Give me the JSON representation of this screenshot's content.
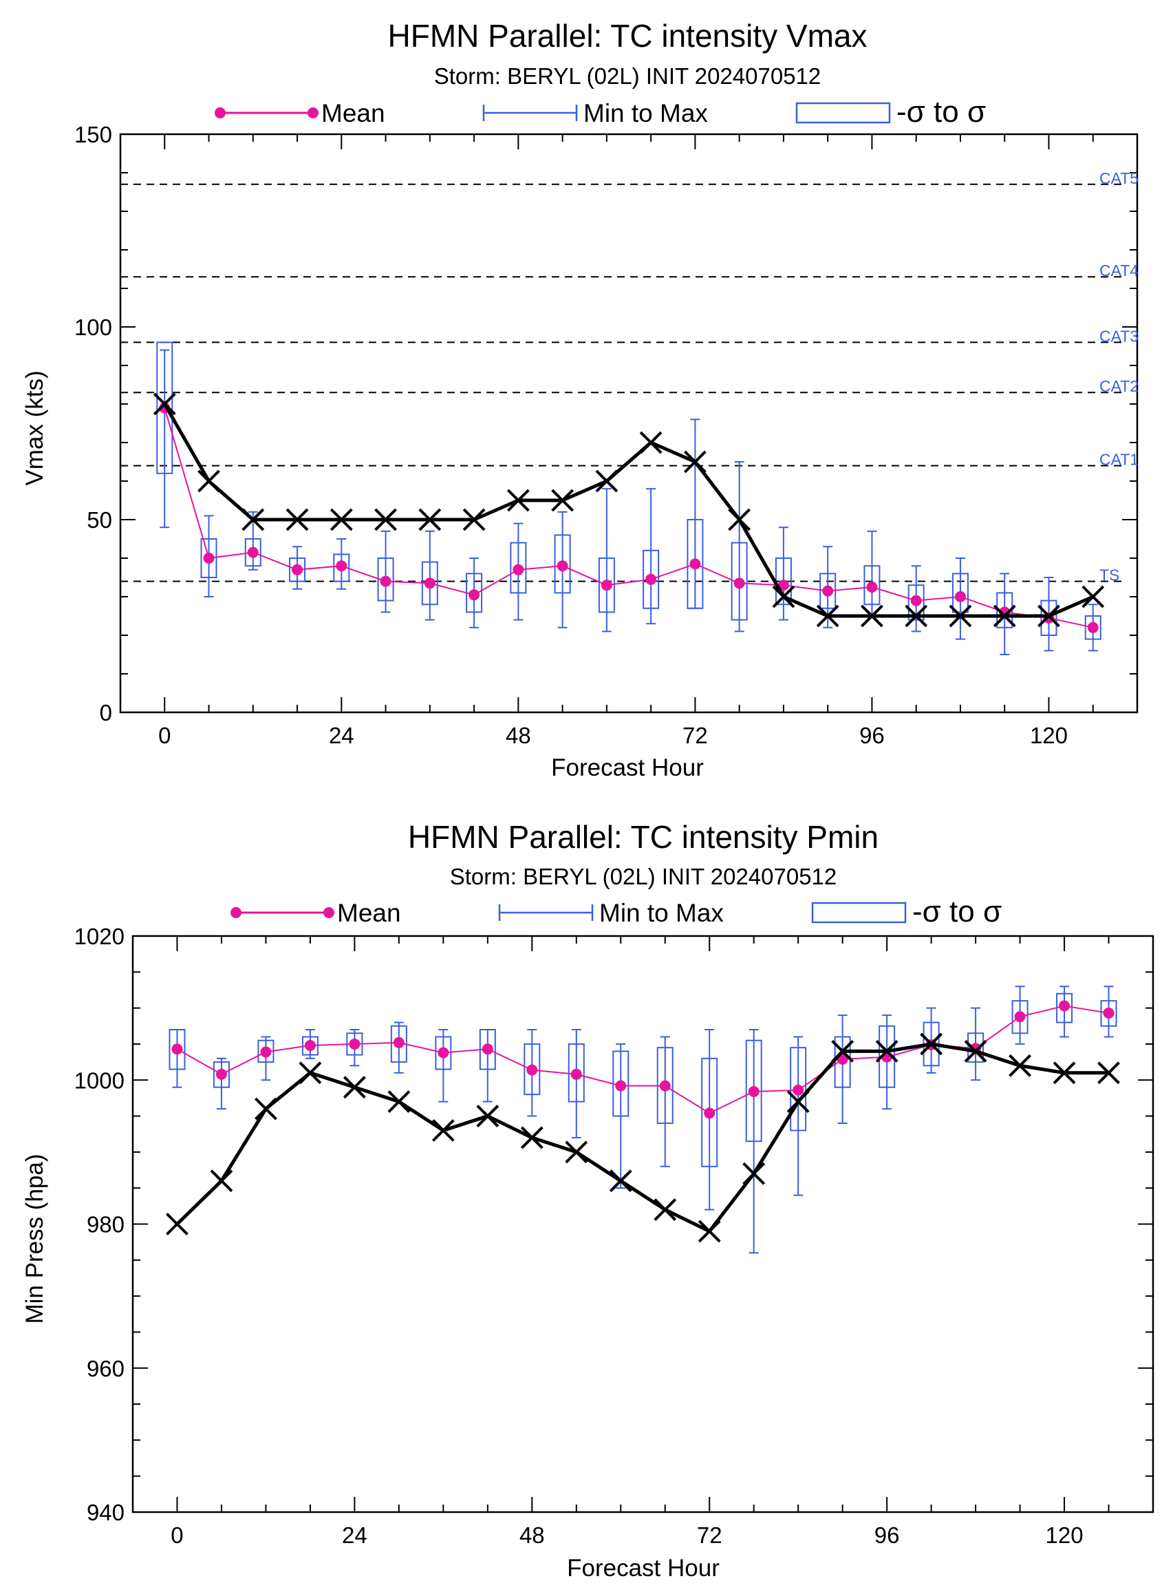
{
  "chart_data": [
    {
      "type": "line",
      "title": "HFMN Parallel: TC intensity Vmax",
      "subtitle": "Storm: BERYL (02L) INIT 2024070512",
      "xlabel": "Forecast Hour",
      "ylabel": "Vmax (kts)",
      "xlim": [
        -6,
        132
      ],
      "ylim": [
        0,
        150
      ],
      "xticks": [
        0,
        24,
        48,
        72,
        96,
        120
      ],
      "yticks": [
        0,
        50,
        100,
        150
      ],
      "legend": {
        "placement": "top",
        "mean": "Mean",
        "range": "Min to Max",
        "sigma": "-σ to σ"
      },
      "thresholds": [
        {
          "label": "TS",
          "value": 34
        },
        {
          "label": "CAT1",
          "value": 64
        },
        {
          "label": "CAT2",
          "value": 83
        },
        {
          "label": "CAT3",
          "value": 96
        },
        {
          "label": "CAT4",
          "value": 113
        },
        {
          "label": "CAT5",
          "value": 137
        }
      ],
      "colors": {
        "mean": "#e6149e",
        "ensemble": "#3a5fe0",
        "observed": "#000000"
      },
      "observed": {
        "x": [
          0,
          6,
          12,
          18,
          24,
          30,
          36,
          42,
          48,
          54,
          60,
          66,
          72,
          78,
          84,
          90,
          96,
          102,
          108,
          114,
          120,
          126
        ],
        "y": [
          80,
          60,
          50,
          50,
          50,
          50,
          50,
          50,
          55,
          55,
          60,
          70,
          65,
          50,
          30,
          25,
          25,
          25,
          25,
          25,
          25,
          30
        ]
      },
      "ensemble": {
        "x": [
          0,
          6,
          12,
          18,
          24,
          30,
          36,
          42,
          48,
          54,
          60,
          66,
          72,
          78,
          84,
          90,
          96,
          102,
          108,
          114,
          120,
          126
        ],
        "mean": [
          79,
          40,
          41.5,
          37,
          38,
          34,
          33.5,
          30.5,
          37,
          38,
          33,
          34.5,
          38.5,
          33.5,
          33,
          31.5,
          32.5,
          29,
          30,
          26,
          24.5,
          22
        ],
        "min": [
          48,
          30,
          37,
          32,
          32,
          26,
          24,
          22,
          24,
          22,
          21,
          23,
          27,
          21,
          24,
          22,
          25,
          21,
          19,
          15,
          16,
          16
        ],
        "max": [
          94,
          51,
          52,
          43,
          45,
          47,
          47,
          40,
          49,
          52,
          58,
          58,
          76,
          65,
          48,
          43,
          47,
          38,
          40,
          36,
          35,
          28
        ],
        "sigma_low": [
          62,
          35,
          38,
          34,
          34,
          29,
          28,
          26,
          31,
          31,
          26,
          27,
          27,
          24,
          28,
          27,
          28,
          24,
          26,
          22,
          20,
          19
        ],
        "sigma_high": [
          96,
          45,
          45,
          40,
          41,
          40,
          39,
          36,
          44,
          46,
          40,
          42,
          50,
          44,
          40,
          36,
          38,
          33,
          36,
          31,
          29,
          25
        ]
      }
    },
    {
      "type": "line",
      "title": "HFMN Parallel: TC intensity Pmin",
      "subtitle": "Storm: BERYL (02L) INIT 2024070512",
      "xlabel": "Forecast Hour",
      "ylabel": "Min Press (hpa)",
      "xlim": [
        -6,
        132
      ],
      "ylim": [
        940,
        1020
      ],
      "xticks": [
        0,
        24,
        48,
        72,
        96,
        120
      ],
      "yticks": [
        940,
        960,
        980,
        1000,
        1020
      ],
      "legend": {
        "placement": "top",
        "mean": "Mean",
        "range": "Min to Max",
        "sigma": "-σ to σ"
      },
      "colors": {
        "mean": "#e6149e",
        "ensemble": "#3a5fe0",
        "observed": "#000000"
      },
      "observed": {
        "x": [
          0,
          6,
          12,
          18,
          24,
          30,
          36,
          42,
          48,
          54,
          60,
          66,
          72,
          78,
          84,
          90,
          96,
          102,
          108,
          114,
          120,
          126
        ],
        "y": [
          980,
          986,
          996,
          1001,
          999,
          997,
          993,
          995,
          992,
          990,
          986,
          982,
          979,
          987,
          997,
          1004,
          1004,
          1005,
          1004,
          1002,
          1001,
          1001
        ]
      },
      "ensemble": {
        "x": [
          0,
          6,
          12,
          18,
          24,
          30,
          36,
          42,
          48,
          54,
          60,
          66,
          72,
          78,
          84,
          90,
          96,
          102,
          108,
          114,
          120,
          126
        ],
        "mean": [
          1004.3,
          1000.8,
          1003.9,
          1004.8,
          1005.0,
          1005.2,
          1003.8,
          1004.3,
          1001.4,
          1000.8,
          999.2,
          999.2,
          995.4,
          998.4,
          998.6,
          1002.9,
          1003.2,
          1004.9,
          1004.4,
          1008.8,
          1010.3,
          1009.3
        ],
        "min": [
          999,
          996,
          1000,
          1003,
          1002,
          1001,
          997,
          997,
          995,
          992,
          985,
          988,
          982,
          976,
          984,
          994,
          996,
          1001,
          1000,
          1005,
          1006,
          1006
        ],
        "max": [
          1007,
          1003,
          1006,
          1007,
          1007,
          1008,
          1007,
          1007,
          1007,
          1007,
          1005,
          1006,
          1007,
          1007,
          1006,
          1009,
          1009,
          1010,
          1010,
          1013,
          1013,
          1013
        ],
        "sigma_low": [
          1001.5,
          999,
          1002.5,
          1003.5,
          1003.5,
          1002.5,
          1001.5,
          1001.5,
          998,
          997,
          995,
          994,
          988,
          991.5,
          993,
          999,
          999,
          1002,
          1002.5,
          1006.5,
          1008,
          1007.5
        ],
        "sigma_high": [
          1007,
          1002.5,
          1005.5,
          1006,
          1006.5,
          1007.5,
          1006,
          1007,
          1005,
          1005,
          1004,
          1004.5,
          1003,
          1005.5,
          1004.5,
          1006,
          1007.5,
          1008,
          1006.5,
          1011,
          1012,
          1011
        ]
      }
    }
  ]
}
